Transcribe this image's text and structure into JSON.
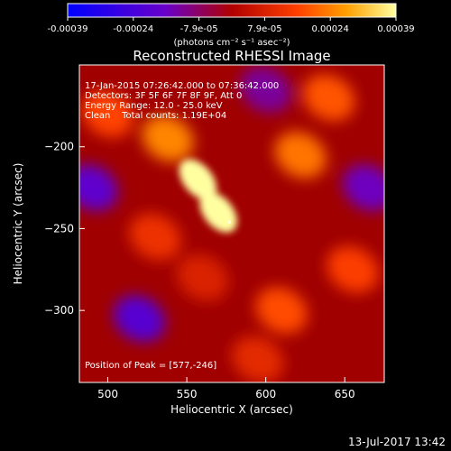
{
  "chart_data": {
    "type": "heatmap",
    "title": "Reconstructed RHESSI Image",
    "xlabel": "Heliocentric X (arcsec)",
    "ylabel": "Heliocentric Y (arcsec)",
    "xlim": [
      482,
      675
    ],
    "ylim": [
      -344,
      -150
    ],
    "x_ticks": [
      "500",
      "550",
      "600",
      "650"
    ],
    "y_ticks": [
      "-200",
      "-250",
      "-300"
    ],
    "colorbar": {
      "tick_labels": [
        "-0.00039",
        "-0.00024",
        "-7.9e-05",
        "7.9e-05",
        "0.00024",
        "0.00039"
      ],
      "unit_label": "(photons cm⁻² s⁻¹ asec⁻²)",
      "range": [
        -0.00039,
        0.00039
      ]
    },
    "annotations": [
      "17-Jan-2015 07:26:42.000 to 07:36:42.000",
      "Detectors: 3F 5F 6F 7F 8F 9F, Att 0",
      "Energy Range: 12.0 - 25.0 keV",
      "Clean    Total counts: 1.19E+04"
    ],
    "peak_label": "Position of Peak = [577,-246]",
    "peak_position": [
      577,
      -246
    ],
    "sources": [
      {
        "x": 557,
        "y": -220,
        "value": 0.00039
      },
      {
        "x": 570,
        "y": -240,
        "value": 0.00039
      },
      {
        "x": 538,
        "y": -195,
        "value": 0.00024
      },
      {
        "x": 530,
        "y": -255,
        "value": 0.00012
      },
      {
        "x": 622,
        "y": -205,
        "value": 0.00022
      },
      {
        "x": 640,
        "y": -170,
        "value": 0.00018
      },
      {
        "x": 610,
        "y": -300,
        "value": 0.00017
      },
      {
        "x": 655,
        "y": -275,
        "value": 0.00015
      },
      {
        "x": 500,
        "y": -180,
        "value": 0.00016
      },
      {
        "x": 595,
        "y": -330,
        "value": 0.0001
      },
      {
        "x": 520,
        "y": -305,
        "value": -0.0002
      },
      {
        "x": 490,
        "y": -225,
        "value": -0.00018
      },
      {
        "x": 600,
        "y": -165,
        "value": -0.00012
      },
      {
        "x": 665,
        "y": -225,
        "value": -0.00015
      },
      {
        "x": 560,
        "y": -280,
        "value": 8e-05
      }
    ]
  },
  "footer_timestamp": "13-Jul-2017 13:42"
}
